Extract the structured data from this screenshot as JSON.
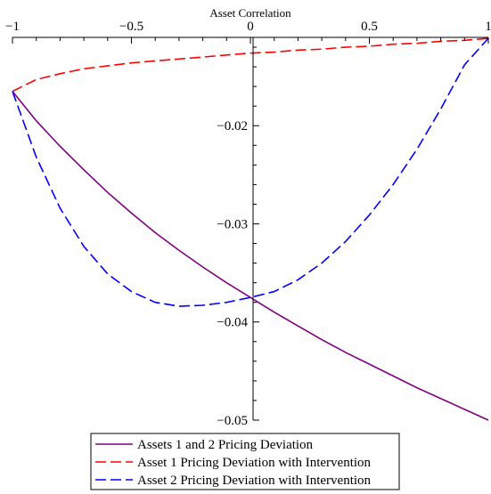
{
  "chart_data": {
    "type": "line",
    "xlabel": "Asset Correlation",
    "ylabel": "",
    "xlim": [
      -1,
      1
    ],
    "ylim": [
      -0.05,
      -0.011
    ],
    "x_axis_position": "top",
    "x_ticks": [
      -1,
      -0.5,
      0,
      0.5,
      1
    ],
    "x_tick_labels": [
      "−1",
      "−0.5",
      "0",
      "0.5",
      "1"
    ],
    "y_ticks": [
      -0.02,
      -0.03,
      -0.04,
      -0.05
    ],
    "y_tick_labels": [
      "−0.02",
      "−0.03",
      "−0.04",
      "−0.05"
    ],
    "grid": false,
    "legend_position": "bottom",
    "series": [
      {
        "name": "Assets 1 and 2 Pricing Deviation",
        "color": "#800080",
        "dash": "solid",
        "x": [
          -1,
          -0.9,
          -0.8,
          -0.7,
          -0.6,
          -0.5,
          -0.4,
          -0.3,
          -0.2,
          -0.1,
          0,
          0.1,
          0.2,
          0.3,
          0.4,
          0.5,
          0.6,
          0.7,
          0.8,
          0.9,
          1
        ],
        "values": [
          -0.0165,
          -0.0195,
          -0.0221,
          -0.0245,
          -0.0268,
          -0.0289,
          -0.0309,
          -0.0327,
          -0.0344,
          -0.036,
          -0.0375,
          -0.039,
          -0.0404,
          -0.0418,
          -0.0431,
          -0.0443,
          -0.0455,
          -0.0467,
          -0.0478,
          -0.0489,
          -0.05
        ]
      },
      {
        "name": "Asset 1 Pricing Deviation  with Intervention",
        "color": "#ff0000",
        "dash": "dashed",
        "x": [
          -1,
          -0.9,
          -0.8,
          -0.7,
          -0.6,
          -0.5,
          -0.4,
          -0.3,
          -0.2,
          -0.1,
          0,
          0.1,
          0.2,
          0.3,
          0.4,
          0.5,
          0.6,
          0.7,
          0.8,
          0.9,
          1
        ],
        "values": [
          -0.0165,
          -0.0153,
          -0.0147,
          -0.0142,
          -0.0139,
          -0.0136,
          -0.0134,
          -0.0132,
          -0.013,
          -0.0128,
          -0.0126,
          -0.0125,
          -0.0123,
          -0.0122,
          -0.012,
          -0.0119,
          -0.0117,
          -0.0116,
          -0.0114,
          -0.0113,
          -0.0111
        ]
      },
      {
        "name": "Asset 2 Pricing Deviation with Intervention",
        "color": "#0000ff",
        "dash": "dashed",
        "x": [
          -1,
          -0.9,
          -0.8,
          -0.7,
          -0.6,
          -0.5,
          -0.4,
          -0.3,
          -0.2,
          -0.1,
          0,
          0.1,
          0.2,
          0.3,
          0.4,
          0.5,
          0.6,
          0.7,
          0.8,
          0.9,
          1
        ],
        "values": [
          -0.0165,
          -0.0232,
          -0.0284,
          -0.0323,
          -0.0351,
          -0.0369,
          -0.038,
          -0.0384,
          -0.0383,
          -0.038,
          -0.0375,
          -0.0369,
          -0.0357,
          -0.034,
          -0.0318,
          -0.0291,
          -0.026,
          -0.0224,
          -0.0183,
          -0.0138,
          -0.0111
        ]
      }
    ]
  }
}
